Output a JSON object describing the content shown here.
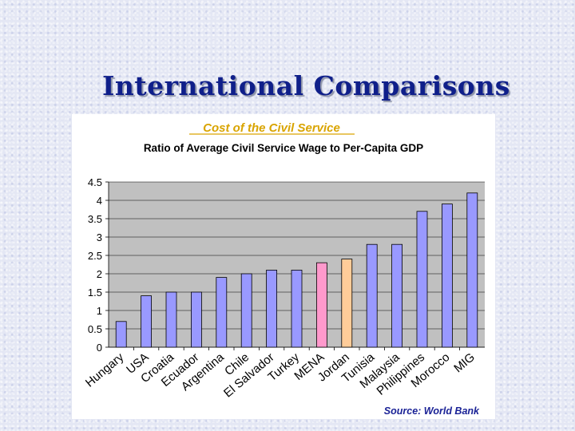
{
  "slide": {
    "title": "International Comparisons"
  },
  "colors": {
    "default_bar": "#9999ff",
    "highlight_mena": "#ff99cc",
    "highlight_jordan": "#ffcc99",
    "plot_bg": "#c0c0c0"
  },
  "chart_data": {
    "type": "bar",
    "title": "Cost of the Civil Service",
    "subtitle": "Ratio of Average Civil Service Wage to Per-Capita GDP",
    "source": "Source: World Bank",
    "categories": [
      "Hungary",
      "USA",
      "Croatia",
      "Ecuador",
      "Argentina",
      "Chile",
      "El Salvador",
      "Turkey",
      "MENA",
      "Jordan",
      "Tunisia",
      "Malaysia",
      "Philippines",
      "Morocco",
      "MIG"
    ],
    "values": [
      0.7,
      1.4,
      1.5,
      1.5,
      1.9,
      2.0,
      2.1,
      2.1,
      2.3,
      2.4,
      2.8,
      2.8,
      3.7,
      3.9,
      4.2
    ],
    "highlight": {
      "MENA": "#ff99cc",
      "Jordan": "#ffcc99"
    },
    "ylim": [
      0,
      4.5
    ],
    "yticks": [
      "0",
      "0.5",
      "1",
      "1.5",
      "2",
      "2.5",
      "3",
      "3.5",
      "4",
      "4.5"
    ],
    "xlabel": "",
    "ylabel": "",
    "grid": true,
    "legend": "none"
  }
}
